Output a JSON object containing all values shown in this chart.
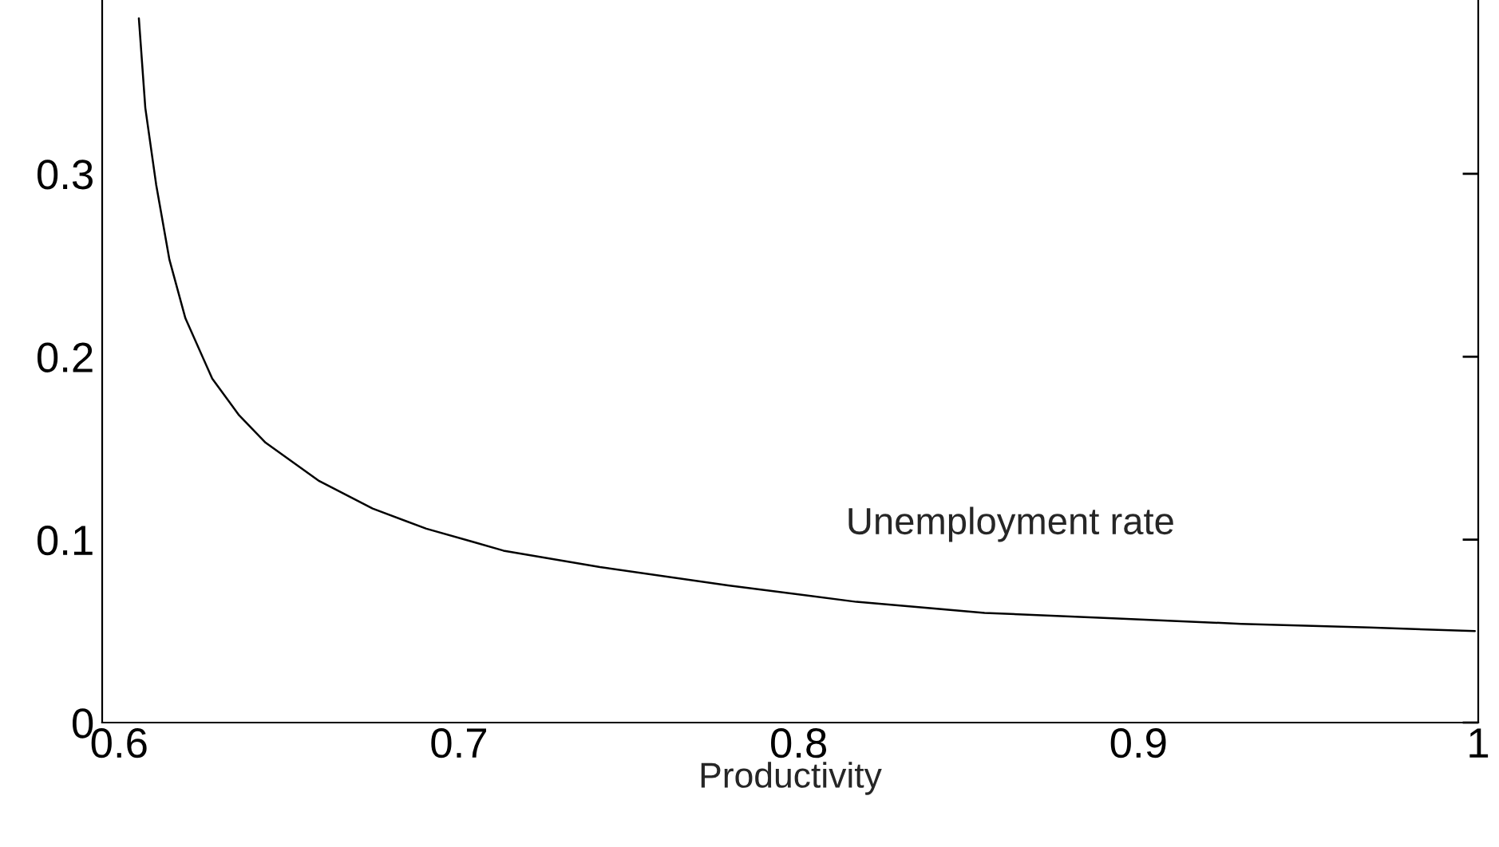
{
  "chart_data": {
    "type": "line",
    "xlabel": "Productivity",
    "x": [
      0.6058,
      0.6077,
      0.6109,
      0.6148,
      0.6195,
      0.6274,
      0.6353,
      0.6431,
      0.6589,
      0.6746,
      0.6904,
      0.7038,
      0.7131,
      0.7415,
      0.7792,
      0.817,
      0.8547,
      0.8925,
      0.9302,
      0.9679,
      0.999
    ],
    "series": [
      {
        "color": "#000000",
        "values": [
          0.385,
          0.336,
          0.294,
          0.253,
          0.221,
          0.188,
          0.168,
          0.153,
          0.132,
          0.117,
          0.106,
          0.099,
          0.094,
          0.085,
          0.075,
          0.066,
          0.06,
          0.057,
          0.054,
          0.052,
          0.05
        ]
      }
    ],
    "annotations": [
      "Unemployment rate"
    ],
    "xlim": [
      0.595,
      1.0
    ],
    "ylim": [
      0,
      0.395
    ],
    "xticks": [
      0.6,
      0.7,
      0.8,
      0.9,
      1
    ],
    "yticks": [
      0,
      0.1,
      0.2,
      0.3
    ],
    "grid": false,
    "legend": false,
    "line_style": "solid",
    "marker": "none"
  }
}
